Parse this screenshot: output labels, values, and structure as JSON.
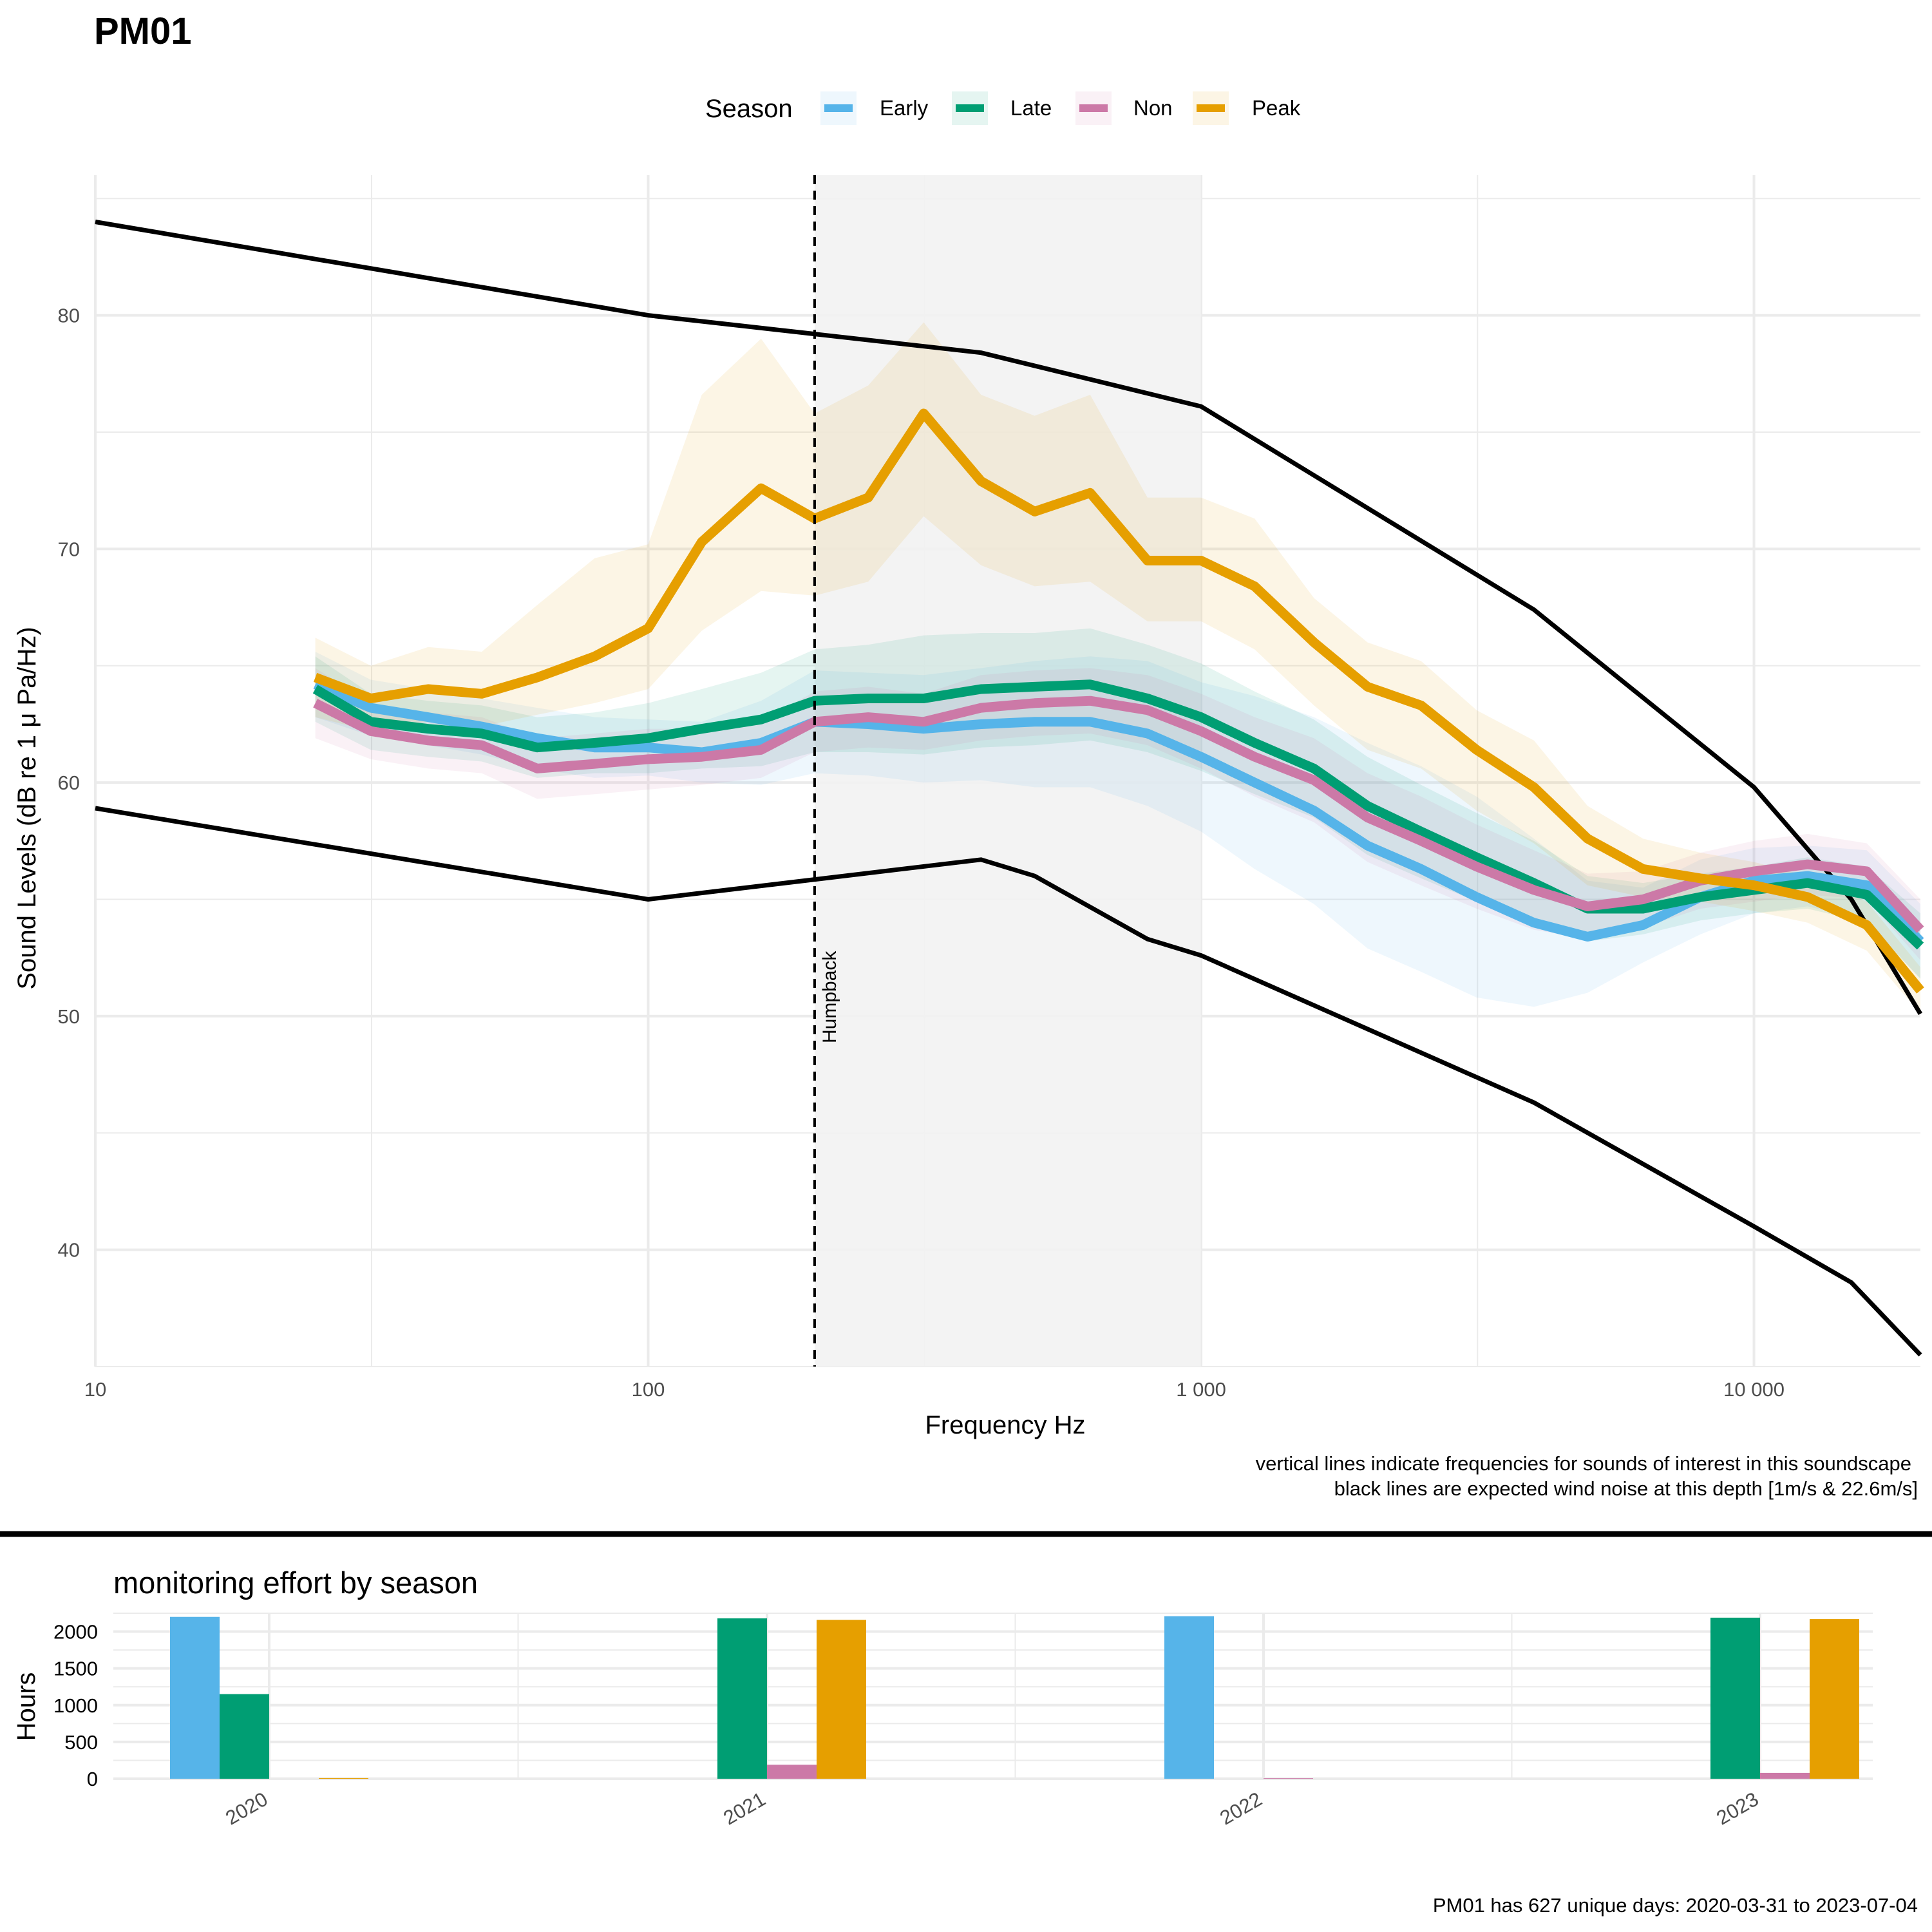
{
  "colors": {
    "Early": "#56B4E9",
    "Late": "#009E73",
    "Non": "#CC79A7",
    "Peak": "#E69F00",
    "grid": "#ebebeb",
    "shade": "#f2f2f2",
    "wind": "#000000"
  },
  "chart_data": [
    {
      "type": "line",
      "title": "PM01",
      "xlabel": "Frequency Hz",
      "ylabel": "Sound Levels (dB re 1 μ Pa/Hz)",
      "x_scale": "log10",
      "xlim": [
        10,
        20000
      ],
      "ylim": [
        35,
        86
      ],
      "x_ticks": [
        10,
        100,
        1000,
        10000
      ],
      "x_tick_labels": [
        "10",
        "100",
        "1 000",
        "10 000"
      ],
      "y_ticks": [
        40,
        50,
        60,
        70,
        80
      ],
      "y_tick_labels": [
        "40",
        "50",
        "60",
        "70",
        "80"
      ],
      "legend": {
        "title": "Season",
        "placement": "top",
        "entries": [
          "Early",
          "Late",
          "Non",
          "Peak"
        ]
      },
      "shaded_band": {
        "x_from": 200,
        "x_to": 1000
      },
      "annotation": {
        "label": "Humpback",
        "x": 200,
        "style": "dashed vertical line"
      },
      "x": [
        25,
        31.5,
        40,
        50,
        63,
        80,
        100,
        125,
        160,
        200,
        250,
        315,
        400,
        500,
        630,
        800,
        1000,
        1250,
        1600,
        2000,
        2500,
        3150,
        4000,
        5000,
        6300,
        8000,
        10000,
        12500,
        16000,
        20000
      ],
      "series": [
        {
          "name": "Early",
          "values": [
            64.2,
            63.2,
            62.8,
            62.4,
            61.9,
            61.5,
            61.5,
            61.3,
            61.7,
            62.6,
            62.5,
            62.3,
            62.5,
            62.6,
            62.6,
            62.1,
            61.1,
            60.0,
            58.8,
            57.3,
            56.3,
            55.1,
            54.0,
            53.4,
            53.9,
            55.1,
            55.8,
            56.0,
            55.6,
            53.2
          ],
          "low": [
            62.8,
            62.0,
            61.6,
            61.2,
            60.6,
            60.2,
            60.3,
            60.0,
            59.9,
            60.4,
            60.3,
            60.0,
            60.1,
            59.8,
            59.8,
            59.0,
            57.9,
            56.3,
            54.8,
            52.9,
            51.9,
            50.8,
            50.4,
            51.0,
            52.3,
            53.5,
            54.4,
            54.7,
            54.1,
            51.6
          ],
          "high": [
            65.6,
            64.4,
            64.0,
            63.6,
            63.2,
            62.8,
            62.7,
            62.6,
            63.5,
            64.8,
            64.7,
            64.6,
            64.9,
            65.2,
            65.4,
            65.2,
            64.3,
            63.7,
            62.8,
            61.7,
            60.7,
            59.4,
            57.6,
            55.8,
            55.5,
            56.7,
            57.2,
            57.3,
            57.1,
            54.8
          ]
        },
        {
          "name": "Late",
          "values": [
            64.0,
            62.6,
            62.3,
            62.1,
            61.5,
            61.7,
            61.9,
            62.3,
            62.7,
            63.5,
            63.6,
            63.6,
            64.0,
            64.1,
            64.2,
            63.6,
            62.8,
            61.7,
            60.6,
            59.0,
            57.9,
            56.8,
            55.7,
            54.6,
            54.6,
            55.1,
            55.4,
            55.7,
            55.2,
            53.0
          ],
          "low": [
            62.6,
            61.4,
            61.1,
            60.9,
            60.2,
            60.4,
            60.4,
            60.6,
            60.7,
            61.3,
            61.3,
            61.2,
            61.5,
            61.6,
            61.8,
            61.3,
            60.5,
            59.5,
            58.5,
            56.9,
            55.9,
            54.9,
            53.9,
            53.2,
            53.5,
            54.1,
            54.4,
            54.6,
            54.0,
            51.6
          ],
          "high": [
            65.4,
            63.8,
            63.5,
            63.3,
            62.8,
            63.0,
            63.4,
            64.0,
            64.7,
            65.7,
            65.9,
            66.3,
            66.4,
            66.4,
            66.6,
            65.9,
            65.1,
            63.9,
            62.7,
            61.1,
            59.9,
            58.7,
            57.5,
            56.0,
            55.7,
            56.1,
            56.4,
            56.8,
            56.4,
            54.4
          ]
        },
        {
          "name": "Non",
          "values": [
            63.4,
            62.2,
            61.8,
            61.6,
            60.6,
            60.8,
            61.0,
            61.1,
            61.4,
            62.6,
            62.8,
            62.6,
            63.2,
            63.4,
            63.5,
            63.1,
            62.2,
            61.1,
            60.1,
            58.5,
            57.5,
            56.4,
            55.4,
            54.7,
            55.0,
            55.8,
            56.2,
            56.5,
            56.2,
            53.7
          ],
          "low": [
            61.9,
            61.0,
            60.6,
            60.4,
            59.3,
            59.5,
            59.7,
            59.9,
            60.2,
            61.3,
            61.5,
            61.4,
            61.8,
            62.0,
            62.1,
            61.6,
            60.6,
            59.4,
            58.3,
            56.6,
            55.6,
            54.6,
            53.7,
            53.3,
            53.8,
            54.6,
            54.9,
            55.2,
            55.0,
            52.4
          ],
          "high": [
            64.9,
            63.4,
            63.0,
            62.8,
            61.9,
            62.1,
            62.3,
            62.3,
            62.6,
            63.9,
            64.1,
            63.8,
            64.6,
            64.8,
            64.9,
            64.6,
            63.8,
            62.8,
            61.9,
            60.4,
            59.4,
            58.2,
            57.1,
            56.1,
            56.2,
            57.0,
            57.5,
            57.8,
            57.4,
            55.0
          ]
        },
        {
          "name": "Peak",
          "values": [
            64.5,
            63.6,
            64.0,
            63.8,
            64.5,
            65.4,
            66.6,
            70.3,
            72.6,
            71.3,
            72.2,
            75.8,
            72.9,
            71.6,
            72.4,
            69.5,
            69.5,
            68.4,
            66.0,
            64.1,
            63.3,
            61.4,
            59.8,
            57.6,
            56.3,
            55.9,
            55.6,
            55.1,
            53.9,
            51.1
          ],
          "low": [
            62.8,
            62.2,
            62.6,
            62.4,
            62.9,
            63.4,
            64.0,
            66.5,
            68.2,
            68.0,
            68.6,
            71.4,
            69.3,
            68.4,
            68.6,
            66.9,
            66.9,
            65.7,
            63.3,
            61.4,
            60.6,
            58.8,
            57.4,
            55.6,
            55.1,
            54.9,
            54.5,
            54.0,
            52.8,
            50.1
          ],
          "high": [
            66.2,
            65.0,
            65.8,
            65.6,
            67.6,
            69.6,
            70.2,
            76.6,
            79.0,
            75.8,
            77.0,
            79.7,
            76.6,
            75.7,
            76.6,
            72.2,
            72.2,
            71.3,
            67.9,
            66.0,
            65.2,
            63.1,
            61.8,
            59.0,
            57.6,
            57.0,
            56.6,
            56.0,
            54.9,
            52.1
          ]
        },
        {
          "name": "wind noise 22.6m/s",
          "x": [
            10,
            100,
            400,
            1000,
            4000,
            10000,
            15000,
            20000
          ],
          "values": [
            84.0,
            80.0,
            78.4,
            76.1,
            67.4,
            59.8,
            55.0,
            50.1
          ]
        },
        {
          "name": "wind noise 1m/s",
          "x": [
            10,
            100,
            400,
            500,
            800,
            1000,
            4000,
            10000,
            15000,
            20000
          ],
          "values": [
            58.9,
            55.0,
            56.7,
            56.0,
            53.3,
            52.6,
            46.3,
            41.0,
            38.6,
            35.5
          ]
        }
      ],
      "captions": [
        "vertical lines indicate frequencies for sounds of interest in this soundscape",
        "black lines are expected wind noise at this depth [1m/s & 22.6m/s]"
      ]
    },
    {
      "type": "bar",
      "title": "monitoring effort by season",
      "ylabel": "Hours",
      "xlabel": "",
      "ylim": [
        0,
        2250
      ],
      "y_ticks": [
        0,
        500,
        1000,
        1500,
        2000
      ],
      "y_tick_labels": [
        "0",
        "500",
        "1000",
        "1500",
        "2000"
      ],
      "categories": [
        "2020",
        "2021",
        "2022",
        "2023"
      ],
      "series": [
        {
          "name": "Early",
          "values": [
            2200,
            0,
            2210,
            0
          ]
        },
        {
          "name": "Late",
          "values": [
            1150,
            2180,
            0,
            2190
          ]
        },
        {
          "name": "Non",
          "values": [
            0,
            190,
            8,
            80
          ]
        },
        {
          "name": "Peak",
          "values": [
            10,
            2160,
            0,
            2170
          ]
        }
      ],
      "caption": "PM01 has 627 unique days: 2020-03-31 to 2023-07-04"
    }
  ]
}
